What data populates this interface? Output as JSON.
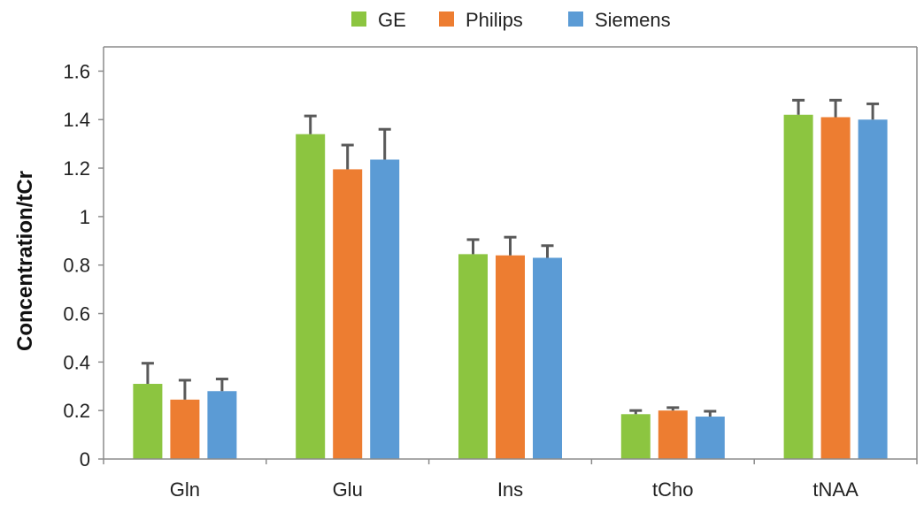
{
  "chart_data": {
    "type": "bar",
    "title": "",
    "xlabel": "",
    "ylabel": "Concentration/tCr",
    "ylim": [
      0,
      1.7
    ],
    "yticks": [
      0,
      0.2,
      0.4,
      0.6,
      0.8,
      1,
      1.2,
      1.4,
      1.6
    ],
    "ytick_labels": [
      "0",
      "0.2",
      "0.4",
      "0.6",
      "0.8",
      "1",
      "1.2",
      "1.4",
      "1.6"
    ],
    "categories": [
      "Gln",
      "Glu",
      "Ins",
      "tCho",
      "tNAA"
    ],
    "legend_position": "top-center",
    "grid": false,
    "error_bars": true,
    "series": [
      {
        "name": "GE",
        "color": "#8cc540",
        "values": [
          0.31,
          1.34,
          0.845,
          0.185,
          1.42
        ],
        "errors": [
          0.085,
          0.075,
          0.06,
          0.015,
          0.06
        ]
      },
      {
        "name": "Philips",
        "color": "#ed7d31",
        "values": [
          0.245,
          1.195,
          0.84,
          0.2,
          1.41
        ],
        "errors": [
          0.08,
          0.1,
          0.075,
          0.012,
          0.07
        ]
      },
      {
        "name": "Siemens",
        "color": "#5b9bd5",
        "values": [
          0.28,
          1.235,
          0.83,
          0.175,
          1.4
        ],
        "errors": [
          0.05,
          0.125,
          0.05,
          0.022,
          0.065
        ]
      }
    ]
  }
}
